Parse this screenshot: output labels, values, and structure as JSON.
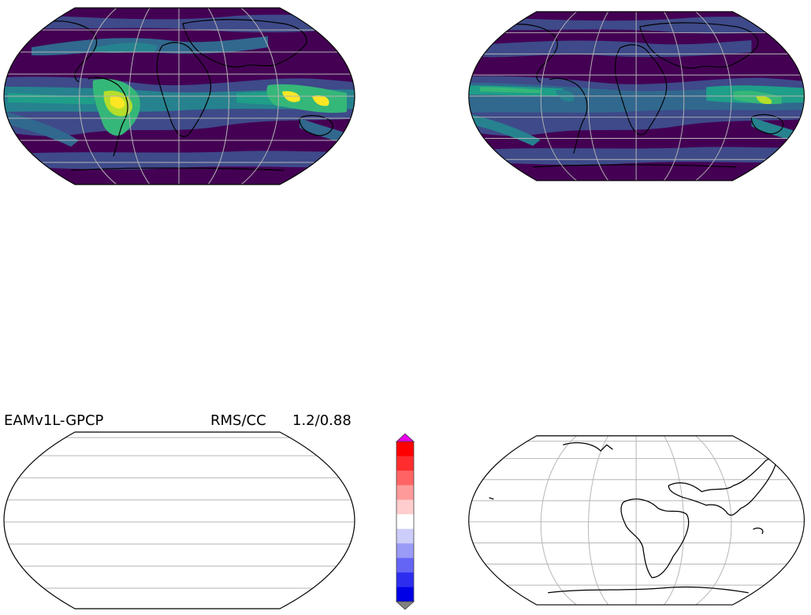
{
  "diff_panel": {
    "title": "EAMv1L-GPCP",
    "metric_label": "RMS/CC",
    "metric_value": "1.2/0.88"
  },
  "icons": [
    "map-panel-model",
    "map-panel-obs",
    "map-panel-difference",
    "map-panel-land-outline",
    "diverging-colorbar"
  ],
  "colors": {
    "field_levels": [
      "#440154",
      "#3e4a89",
      "#31688e",
      "#26828e",
      "#1f9e89",
      "#35b779",
      "#6ece58",
      "#b5de2b",
      "#fde725"
    ],
    "colorbar_levels": [
      "#0000e6",
      "#2d2df0",
      "#6464f5",
      "#9a9af7",
      "#cdcdfa",
      "#ffffff",
      "#ffcdcd",
      "#ff9a9a",
      "#ff6464",
      "#ff2d2d",
      "#ff0000"
    ],
    "colorbar_over": "#e600e6",
    "colorbar_under": "#808080",
    "gridline": "#b4b4b4",
    "coastline": "#000000"
  }
}
